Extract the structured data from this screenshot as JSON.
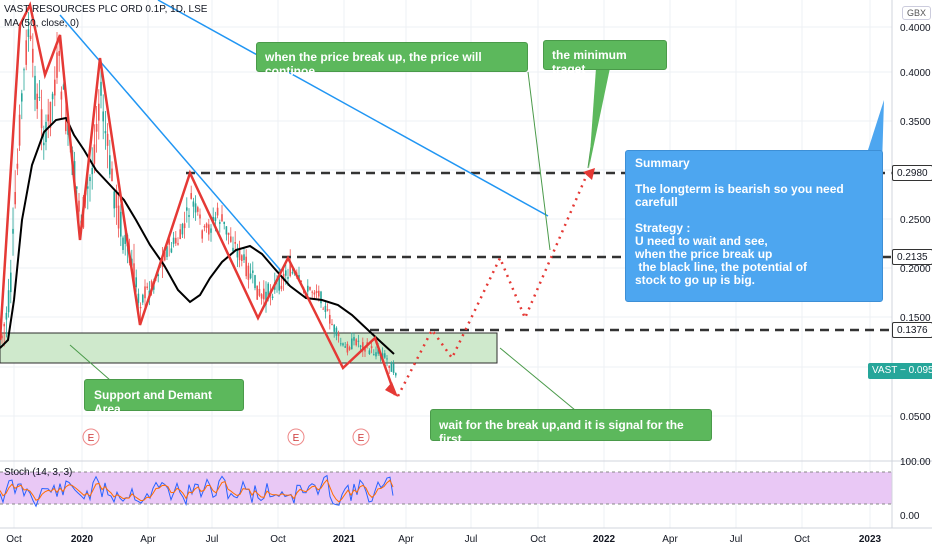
{
  "header": {
    "symbol": "VAST RESOURCES PLC ORD 0.1P, 1D, LSE",
    "ma_label": "MA (50, close, 0)",
    "stoch_label": "Stoch (14, 3, 3)",
    "currency": "GBX"
  },
  "annotations": {
    "break_up": "when the price break up, the price will continoe",
    "min_target": "the minimum traget",
    "summary_title": "Summary",
    "summary_line1": "The longterm is bearish so you need carefull",
    "strategy_title": "Strategy :",
    "strategy_l1": "U need to wait and see,",
    "strategy_l2": "when the price break up",
    "strategy_l3": " the black line, the potential of",
    "strategy_l4": "stock to go up is big.",
    "support": "Support and Demant Area",
    "wait_signal": "wait for the break up,and it is signal for the first"
  },
  "price_tags": {
    "level_high": "0.2980",
    "level_mid": "0.2135",
    "level_low": "0.1376",
    "last": "VAST − 0.0950"
  },
  "colors": {
    "callout_green": "#5cb85c",
    "callout_blue": "#4da6f0",
    "trend_red": "#e53935",
    "trend_blue": "#2196f3",
    "stoch_fill": "#e9c8f5",
    "support_fill": "#cfe9cc",
    "last_price": "#26a69a"
  },
  "chart_data": {
    "type": "line",
    "title": "VAST RESOURCES PLC ORD 0.1P, 1D, LSE",
    "xlabel": "",
    "ylabel": "",
    "y_axis_ticks": [
      "0.4000",
      "0.3500",
      "0.3000",
      "0.2500",
      "0.2000",
      "0.1500",
      "0.1000",
      "0.0500"
    ],
    "x_axis_ticks": [
      "Oct",
      "2020",
      "Apr",
      "Jul",
      "Oct",
      "2021",
      "Apr",
      "Jul",
      "Oct",
      "2022",
      "Apr",
      "Jul",
      "Oct",
      "2023"
    ],
    "ylim": [
      0.04,
      0.44
    ],
    "horizontal_levels": [
      0.298,
      0.2135,
      0.1376
    ],
    "last_price": 0.095,
    "earnings_markers": [
      "E",
      "E",
      "E"
    ],
    "stoch_ticks": [
      "100.00",
      "0.00"
    ],
    "series": [
      {
        "name": "MA (50, close, 0)",
        "values": [
          0.11,
          0.2,
          0.3,
          0.345,
          0.34,
          0.3,
          0.26,
          0.23,
          0.205,
          0.18,
          0.16,
          0.15,
          0.16,
          0.19,
          0.21,
          0.205,
          0.19,
          0.17,
          0.17,
          0.165,
          0.13,
          0.12,
          0.11
        ]
      }
    ]
  }
}
